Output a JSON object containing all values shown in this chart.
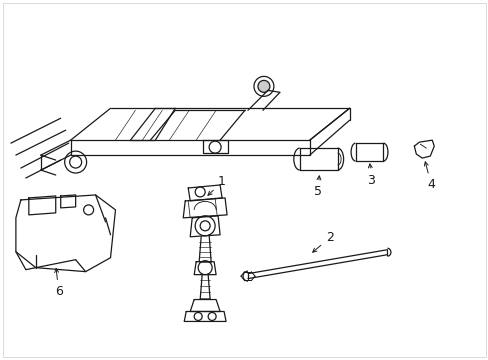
{
  "background_color": "#ffffff",
  "line_color": "#1a1a1a",
  "figsize": [
    4.89,
    3.6
  ],
  "dpi": 100,
  "border_color": "#cccccc"
}
